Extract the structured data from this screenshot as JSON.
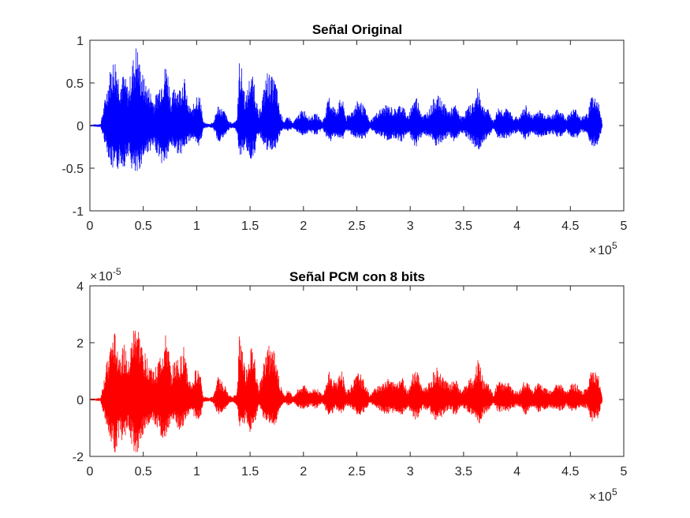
{
  "chart_data": [
    {
      "type": "line",
      "title": "Señal Original",
      "xlabel": "",
      "ylabel": "",
      "xlim": [
        0,
        500000
      ],
      "ylim": [
        -1,
        1
      ],
      "x_ticks": [
        "0",
        "0.5",
        "1",
        "1.5",
        "2",
        "2.5",
        "3",
        "3.5",
        "4",
        "4.5",
        "5"
      ],
      "y_ticks": [
        "-1",
        "-0.5",
        "0",
        "0.5",
        "1"
      ],
      "x_exponent": "10",
      "x_exponent_power": "5",
      "series_color": "#0000ff",
      "grid": false,
      "envelope_x": [
        0,
        10000,
        20000,
        24000,
        28000,
        32000,
        36000,
        40000,
        44000,
        47000,
        52000,
        56000,
        60000,
        64000,
        68000,
        72000,
        76000,
        80000,
        84000,
        88000,
        92000,
        96000,
        100000,
        104000,
        106000,
        108000,
        112000,
        116000,
        120000,
        126000,
        130000,
        134000,
        138000,
        140000,
        142000,
        146000,
        150000,
        154000,
        158000,
        162000,
        166000,
        170000,
        174000,
        178000,
        182000,
        186000,
        190000,
        196000,
        200000,
        206000,
        212000,
        218000,
        224000,
        230000,
        236000,
        240000,
        246000,
        252000,
        258000,
        262000,
        270000,
        278000,
        286000,
        292000,
        298000,
        302000,
        306000,
        312000,
        318000,
        324000,
        330000,
        336000,
        342000,
        348000,
        354000,
        360000,
        364000,
        368000,
        374000,
        378000,
        382000,
        388000,
        392000,
        396000,
        402000,
        408000,
        414000,
        420000,
        426000,
        432000,
        436000,
        440000,
        446000,
        452000,
        456000,
        460000,
        466000,
        470000,
        476000,
        480000
      ],
      "envelope_max": [
        0.01,
        0.02,
        0.75,
        0.82,
        0.55,
        0.62,
        0.45,
        0.78,
        1.0,
        0.72,
        0.52,
        0.45,
        0.3,
        0.45,
        0.62,
        0.78,
        0.32,
        0.5,
        0.45,
        0.62,
        0.25,
        0.2,
        0.4,
        0.32,
        0.05,
        0.03,
        0.02,
        0.05,
        0.25,
        0.18,
        0.05,
        0.03,
        0.1,
        0.78,
        0.7,
        0.32,
        0.62,
        0.55,
        0.12,
        0.38,
        0.65,
        0.58,
        0.55,
        0.18,
        0.05,
        0.12,
        0.03,
        0.15,
        0.2,
        0.1,
        0.15,
        0.05,
        0.35,
        0.2,
        0.35,
        0.1,
        0.2,
        0.32,
        0.2,
        0.05,
        0.18,
        0.25,
        0.2,
        0.28,
        0.1,
        0.3,
        0.35,
        0.12,
        0.2,
        0.38,
        0.3,
        0.18,
        0.25,
        0.1,
        0.22,
        0.3,
        0.48,
        0.25,
        0.18,
        0.05,
        0.22,
        0.2,
        0.2,
        0.12,
        0.1,
        0.25,
        0.12,
        0.2,
        0.15,
        0.12,
        0.18,
        0.2,
        0.1,
        0.2,
        0.2,
        0.1,
        0.15,
        0.38,
        0.32,
        0.02
      ],
      "envelope_min": [
        -0.01,
        -0.02,
        -0.5,
        -0.62,
        -0.45,
        -0.5,
        -0.35,
        -0.58,
        -0.64,
        -0.5,
        -0.35,
        -0.3,
        -0.28,
        -0.35,
        -0.48,
        -0.42,
        -0.25,
        -0.3,
        -0.35,
        -0.3,
        -0.2,
        -0.15,
        -0.28,
        -0.2,
        -0.04,
        -0.03,
        -0.02,
        -0.05,
        -0.2,
        -0.15,
        -0.05,
        -0.03,
        -0.08,
        -0.38,
        -0.35,
        -0.25,
        -0.42,
        -0.35,
        -0.1,
        -0.2,
        -0.32,
        -0.3,
        -0.3,
        -0.12,
        -0.04,
        -0.08,
        -0.03,
        -0.1,
        -0.12,
        -0.08,
        -0.12,
        -0.04,
        -0.22,
        -0.12,
        -0.2,
        -0.06,
        -0.12,
        -0.2,
        -0.15,
        -0.04,
        -0.12,
        -0.18,
        -0.15,
        -0.2,
        -0.08,
        -0.22,
        -0.25,
        -0.1,
        -0.15,
        -0.25,
        -0.22,
        -0.12,
        -0.2,
        -0.08,
        -0.15,
        -0.25,
        -0.32,
        -0.2,
        -0.12,
        -0.04,
        -0.15,
        -0.15,
        -0.15,
        -0.1,
        -0.08,
        -0.18,
        -0.08,
        -0.15,
        -0.12,
        -0.1,
        -0.12,
        -0.15,
        -0.08,
        -0.15,
        -0.15,
        -0.08,
        -0.12,
        -0.28,
        -0.22,
        -0.02
      ]
    },
    {
      "type": "line",
      "title": "Señal PCM con 8 bits",
      "xlabel": "",
      "ylabel": "",
      "xlim": [
        0,
        500000
      ],
      "ylim": [
        -2,
        4
      ],
      "x_ticks": [
        "0",
        "0.5",
        "1",
        "1.5",
        "2",
        "2.5",
        "3",
        "3.5",
        "4",
        "4.5",
        "5"
      ],
      "y_ticks": [
        "-2",
        "0",
        "2",
        "4"
      ],
      "x_exponent": "10",
      "x_exponent_power": "5",
      "y_exponent": "10",
      "y_exponent_power": "-5",
      "series_color": "#ff0000",
      "grid": false,
      "envelope_x": [
        0,
        10000,
        20000,
        24000,
        28000,
        32000,
        36000,
        40000,
        44000,
        47000,
        52000,
        56000,
        60000,
        64000,
        68000,
        72000,
        76000,
        80000,
        84000,
        88000,
        92000,
        96000,
        100000,
        104000,
        106000,
        108000,
        112000,
        116000,
        120000,
        126000,
        130000,
        134000,
        138000,
        140000,
        142000,
        146000,
        150000,
        154000,
        158000,
        162000,
        166000,
        170000,
        174000,
        178000,
        182000,
        186000,
        190000,
        196000,
        200000,
        206000,
        212000,
        218000,
        224000,
        230000,
        236000,
        240000,
        246000,
        252000,
        258000,
        262000,
        270000,
        278000,
        286000,
        292000,
        298000,
        302000,
        306000,
        312000,
        318000,
        324000,
        330000,
        336000,
        342000,
        348000,
        354000,
        360000,
        364000,
        368000,
        374000,
        378000,
        382000,
        388000,
        392000,
        396000,
        402000,
        408000,
        414000,
        420000,
        426000,
        432000,
        436000,
        440000,
        446000,
        452000,
        456000,
        460000,
        466000,
        470000,
        476000,
        480000
      ],
      "envelope_max": [
        0.03,
        0.06,
        2.2,
        2.4,
        1.7,
        2.0,
        1.3,
        2.4,
        3.0,
        2.2,
        1.6,
        1.4,
        1.0,
        1.4,
        1.9,
        2.4,
        1.0,
        1.5,
        1.4,
        1.9,
        0.8,
        0.6,
        1.2,
        1.0,
        0.15,
        0.1,
        0.06,
        0.15,
        0.8,
        0.55,
        0.15,
        0.1,
        0.3,
        2.4,
        2.1,
        1.0,
        1.9,
        1.7,
        0.4,
        1.1,
        2.0,
        1.8,
        1.7,
        0.55,
        0.15,
        0.4,
        0.1,
        0.45,
        0.6,
        0.3,
        0.45,
        0.15,
        1.1,
        0.6,
        1.1,
        0.3,
        0.6,
        1.0,
        0.6,
        0.15,
        0.55,
        0.75,
        0.6,
        0.85,
        0.3,
        0.9,
        1.1,
        0.4,
        0.6,
        1.2,
        0.9,
        0.55,
        0.75,
        0.3,
        0.65,
        0.9,
        1.5,
        0.75,
        0.55,
        0.15,
        0.65,
        0.6,
        0.6,
        0.35,
        0.3,
        0.75,
        0.35,
        0.6,
        0.45,
        0.35,
        0.55,
        0.6,
        0.3,
        0.6,
        0.6,
        0.3,
        0.45,
        1.1,
        1.0,
        0.06
      ],
      "envelope_min": [
        -0.03,
        -0.06,
        -1.6,
        -1.9,
        -1.4,
        -1.5,
        -1.1,
        -1.8,
        -1.95,
        -1.5,
        -1.1,
        -0.9,
        -0.85,
        -1.1,
        -1.45,
        -1.3,
        -0.75,
        -0.9,
        -1.1,
        -0.9,
        -0.6,
        -0.45,
        -0.85,
        -0.6,
        -0.12,
        -0.09,
        -0.06,
        -0.15,
        -0.6,
        -0.45,
        -0.15,
        -0.09,
        -0.25,
        -1.15,
        -1.05,
        -0.75,
        -1.25,
        -1.05,
        -0.3,
        -0.6,
        -0.95,
        -0.9,
        -0.9,
        -0.35,
        -0.12,
        -0.25,
        -0.09,
        -0.3,
        -0.35,
        -0.25,
        -0.35,
        -0.12,
        -0.65,
        -0.35,
        -0.6,
        -0.2,
        -0.35,
        -0.6,
        -0.45,
        -0.12,
        -0.35,
        -0.55,
        -0.45,
        -0.6,
        -0.25,
        -0.65,
        -0.75,
        -0.3,
        -0.45,
        -0.75,
        -0.65,
        -0.35,
        -0.6,
        -0.25,
        -0.45,
        -0.75,
        -0.95,
        -0.6,
        -0.35,
        -0.12,
        -0.45,
        -0.45,
        -0.45,
        -0.3,
        -0.25,
        -0.55,
        -0.25,
        -0.45,
        -0.35,
        -0.3,
        -0.35,
        -0.45,
        -0.25,
        -0.45,
        -0.45,
        -0.25,
        -0.35,
        -0.85,
        -0.65,
        -0.06
      ]
    }
  ]
}
